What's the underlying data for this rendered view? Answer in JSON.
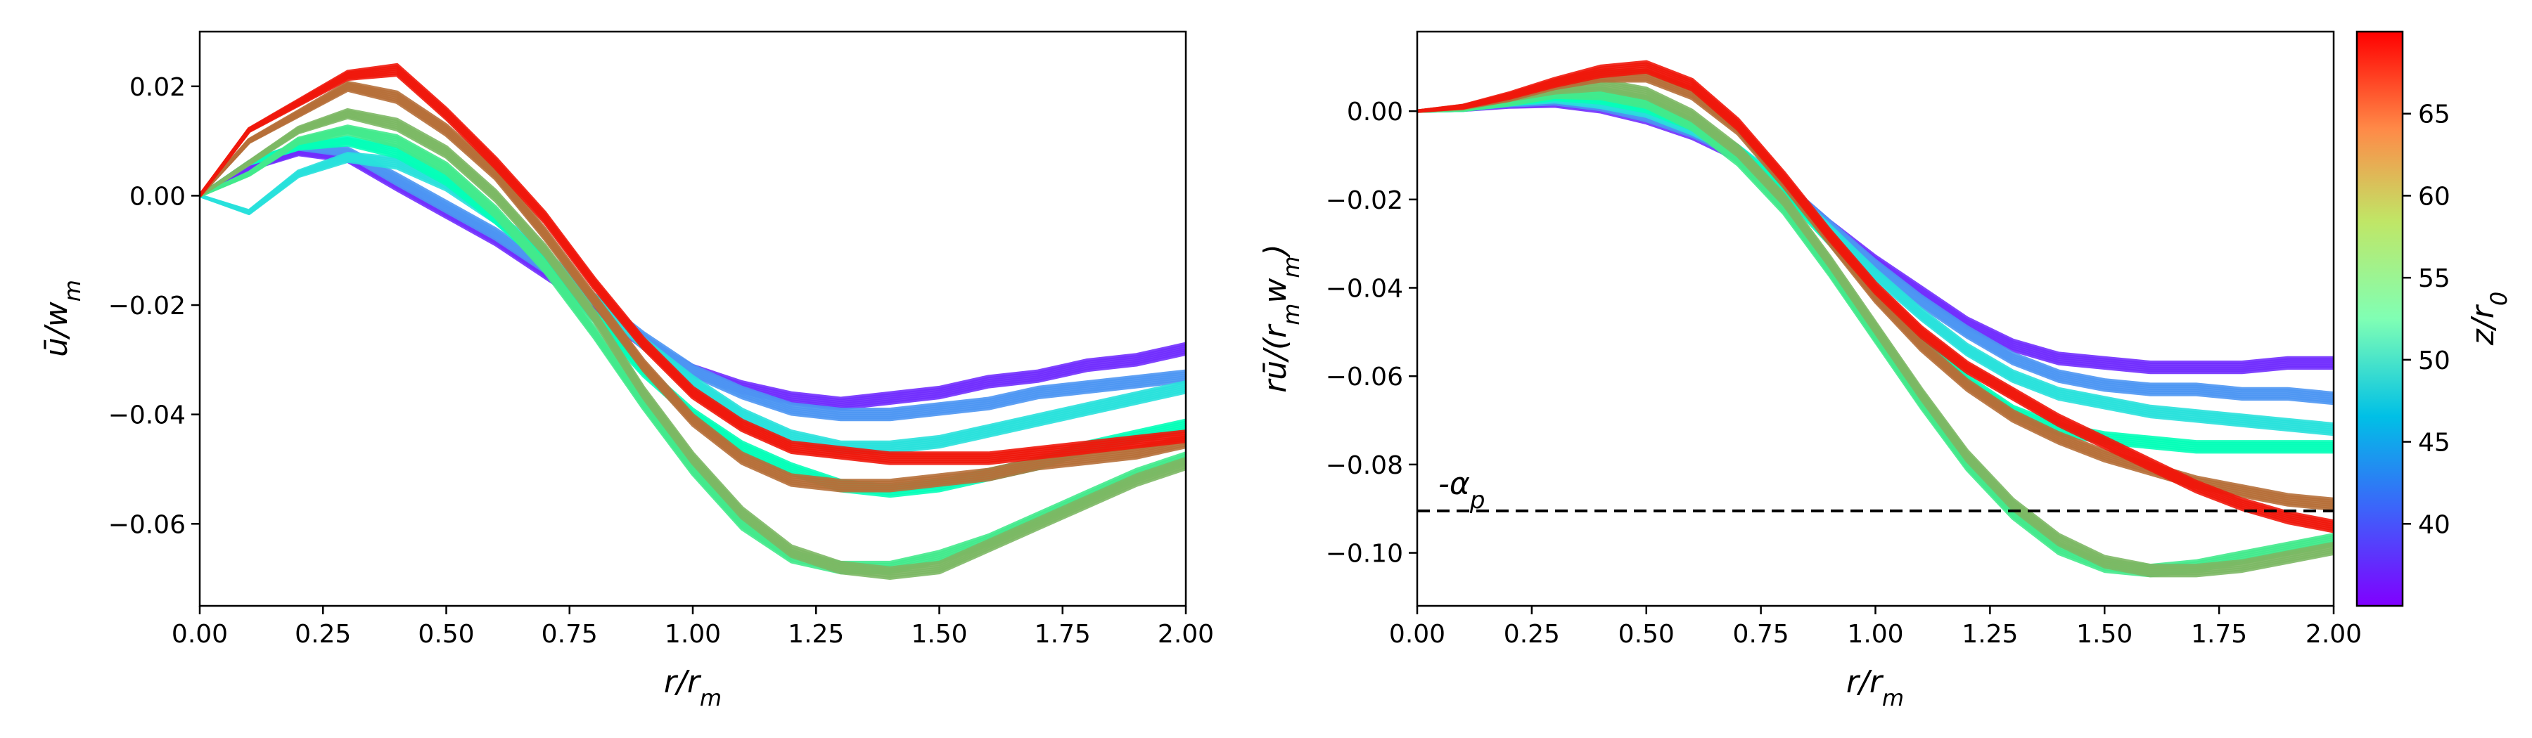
{
  "chart_data": [
    {
      "type": "line",
      "xlabel": "r/r_m",
      "ylabel": "ū/w_m",
      "xlim": [
        0.0,
        2.0
      ],
      "ylim": [
        -0.075,
        0.03
      ],
      "xticks": [
        "0.00",
        "0.25",
        "0.50",
        "0.75",
        "1.00",
        "1.25",
        "1.50",
        "1.75",
        "2.00"
      ],
      "yticks": [
        "0.02",
        "0.00",
        "−0.02",
        "−0.04",
        "−0.06"
      ],
      "grid": false,
      "color_encoding": "z/r0 (rainbow colormap)",
      "series": [
        {
          "z": 37,
          "x": [
            0,
            0.1,
            0.2,
            0.3,
            0.4,
            0.5,
            0.6,
            0.7,
            0.8,
            0.9,
            1.0,
            1.1,
            1.2,
            1.3,
            1.4,
            1.5,
            1.6,
            1.7,
            1.8,
            1.9,
            2.0
          ],
          "y": [
            0,
            0.005,
            0.008,
            0.007,
            0.002,
            -0.003,
            -0.008,
            -0.014,
            -0.02,
            -0.027,
            -0.032,
            -0.035,
            -0.037,
            -0.038,
            -0.037,
            -0.036,
            -0.034,
            -0.033,
            -0.031,
            -0.03,
            -0.028
          ]
        },
        {
          "z": 42,
          "x": [
            0,
            0.1,
            0.2,
            0.3,
            0.4,
            0.5,
            0.6,
            0.7,
            0.8,
            0.9,
            1.0,
            1.1,
            1.2,
            1.3,
            1.4,
            1.5,
            1.6,
            1.7,
            1.8,
            1.9,
            2.0
          ],
          "y": [
            0,
            0.006,
            0.009,
            0.008,
            0.003,
            -0.002,
            -0.007,
            -0.013,
            -0.019,
            -0.026,
            -0.032,
            -0.036,
            -0.039,
            -0.04,
            -0.04,
            -0.039,
            -0.038,
            -0.036,
            -0.035,
            -0.034,
            -0.033
          ]
        },
        {
          "z": 47,
          "x": [
            0,
            0.1,
            0.2,
            0.3,
            0.4,
            0.5,
            0.6,
            0.7,
            0.8,
            0.9,
            1.0,
            1.1,
            1.2,
            1.3,
            1.4,
            1.5,
            1.6,
            1.7,
            1.8,
            1.9,
            2.0
          ],
          "y": [
            0,
            -0.003,
            0.004,
            0.007,
            0.006,
            0.002,
            -0.004,
            -0.011,
            -0.019,
            -0.027,
            -0.034,
            -0.04,
            -0.044,
            -0.046,
            -0.046,
            -0.045,
            -0.043,
            -0.041,
            -0.039,
            -0.037,
            -0.035
          ]
        },
        {
          "z": 52,
          "x": [
            0,
            0.1,
            0.2,
            0.3,
            0.4,
            0.5,
            0.6,
            0.7,
            0.8,
            0.9,
            1.0,
            1.1,
            1.2,
            1.3,
            1.4,
            1.5,
            1.6,
            1.7,
            1.8,
            1.9,
            2.0
          ],
          "y": [
            0,
            0.006,
            0.009,
            0.01,
            0.008,
            0.003,
            -0.004,
            -0.012,
            -0.022,
            -0.032,
            -0.04,
            -0.046,
            -0.05,
            -0.053,
            -0.054,
            -0.053,
            -0.051,
            -0.049,
            -0.046,
            -0.044,
            -0.042
          ]
        },
        {
          "z": 57,
          "x": [
            0,
            0.1,
            0.2,
            0.3,
            0.4,
            0.5,
            0.6,
            0.7,
            0.8,
            0.9,
            1.0,
            1.1,
            1.2,
            1.3,
            1.4,
            1.5,
            1.6,
            1.7,
            1.8,
            1.9,
            2.0
          ],
          "y": [
            0,
            0.004,
            0.01,
            0.012,
            0.01,
            0.005,
            -0.003,
            -0.013,
            -0.025,
            -0.038,
            -0.05,
            -0.06,
            -0.066,
            -0.068,
            -0.068,
            -0.066,
            -0.063,
            -0.059,
            -0.055,
            -0.051,
            -0.048
          ]
        },
        {
          "z": 61,
          "x": [
            0,
            0.1,
            0.2,
            0.3,
            0.4,
            0.5,
            0.6,
            0.7,
            0.8,
            0.9,
            1.0,
            1.1,
            1.2,
            1.3,
            1.4,
            1.5,
            1.6,
            1.7,
            1.8,
            1.9,
            2.0
          ],
          "y": [
            0,
            0.006,
            0.012,
            0.015,
            0.013,
            0.008,
            0.0,
            -0.01,
            -0.022,
            -0.036,
            -0.048,
            -0.058,
            -0.065,
            -0.068,
            -0.069,
            -0.068,
            -0.064,
            -0.06,
            -0.056,
            -0.052,
            -0.049
          ]
        },
        {
          "z": 65,
          "x": [
            0,
            0.1,
            0.2,
            0.3,
            0.4,
            0.5,
            0.6,
            0.7,
            0.8,
            0.9,
            1.0,
            1.1,
            1.2,
            1.3,
            1.4,
            1.5,
            1.6,
            1.7,
            1.8,
            1.9,
            2.0
          ],
          "y": [
            0,
            0.01,
            0.015,
            0.02,
            0.018,
            0.012,
            0.004,
            -0.007,
            -0.019,
            -0.031,
            -0.041,
            -0.048,
            -0.052,
            -0.053,
            -0.053,
            -0.052,
            -0.051,
            -0.049,
            -0.048,
            -0.047,
            -0.045
          ]
        },
        {
          "z": 69,
          "x": [
            0,
            0.1,
            0.2,
            0.3,
            0.4,
            0.5,
            0.6,
            0.7,
            0.8,
            0.9,
            1.0,
            1.1,
            1.2,
            1.3,
            1.4,
            1.5,
            1.6,
            1.7,
            1.8,
            1.9,
            2.0
          ],
          "y": [
            0,
            0.012,
            0.017,
            0.022,
            0.023,
            0.015,
            0.006,
            -0.004,
            -0.016,
            -0.027,
            -0.036,
            -0.042,
            -0.046,
            -0.047,
            -0.048,
            -0.048,
            -0.048,
            -0.047,
            -0.046,
            -0.045,
            -0.044
          ]
        }
      ]
    },
    {
      "type": "line",
      "xlabel": "r/r_m",
      "ylabel": "rū/(r_m w_m)",
      "xlim": [
        0.0,
        2.0
      ],
      "ylim": [
        -0.112,
        0.018
      ],
      "xticks": [
        "0.00",
        "0.25",
        "0.50",
        "0.75",
        "1.00",
        "1.25",
        "1.50",
        "1.75",
        "2.00"
      ],
      "yticks": [
        "0.00",
        "−0.02",
        "−0.04",
        "−0.06",
        "−0.08",
        "−0.10"
      ],
      "grid": false,
      "reference_line": {
        "label": "-α_p",
        "y": -0.0905,
        "style": "dashed"
      },
      "series": [
        {
          "z": 37,
          "x": [
            0,
            0.1,
            0.2,
            0.3,
            0.4,
            0.5,
            0.6,
            0.7,
            0.8,
            0.9,
            1.0,
            1.1,
            1.2,
            1.3,
            1.4,
            1.5,
            1.6,
            1.7,
            1.8,
            1.9,
            2.0
          ],
          "y": [
            0,
            0.0005,
            0.0015,
            0.002,
            0.001,
            -0.0015,
            -0.005,
            -0.01,
            -0.017,
            -0.026,
            -0.034,
            -0.041,
            -0.048,
            -0.053,
            -0.056,
            -0.057,
            -0.058,
            -0.058,
            -0.058,
            -0.057,
            -0.057
          ]
        },
        {
          "z": 42,
          "x": [
            0,
            0.1,
            0.2,
            0.3,
            0.4,
            0.5,
            0.6,
            0.7,
            0.8,
            0.9,
            1.0,
            1.1,
            1.2,
            1.3,
            1.4,
            1.5,
            1.6,
            1.7,
            1.8,
            1.9,
            2.0
          ],
          "y": [
            0,
            0.0006,
            0.0018,
            0.0025,
            0.0015,
            -0.001,
            -0.0045,
            -0.0095,
            -0.017,
            -0.026,
            -0.035,
            -0.043,
            -0.05,
            -0.056,
            -0.06,
            -0.062,
            -0.063,
            -0.063,
            -0.064,
            -0.064,
            -0.065
          ]
        },
        {
          "z": 47,
          "x": [
            0,
            0.1,
            0.2,
            0.3,
            0.4,
            0.5,
            0.6,
            0.7,
            0.8,
            0.9,
            1.0,
            1.1,
            1.2,
            1.3,
            1.4,
            1.5,
            1.6,
            1.7,
            1.8,
            1.9,
            2.0
          ],
          "y": [
            0,
            0.0005,
            0.002,
            0.003,
            0.002,
            0.0,
            -0.004,
            -0.009,
            -0.017,
            -0.027,
            -0.037,
            -0.046,
            -0.054,
            -0.06,
            -0.064,
            -0.066,
            -0.068,
            -0.069,
            -0.07,
            -0.071,
            -0.072
          ]
        },
        {
          "z": 52,
          "x": [
            0,
            0.1,
            0.2,
            0.3,
            0.4,
            0.5,
            0.6,
            0.7,
            0.8,
            0.9,
            1.0,
            1.1,
            1.2,
            1.3,
            1.4,
            1.5,
            1.6,
            1.7,
            1.8,
            1.9,
            2.0
          ],
          "y": [
            0,
            0.0005,
            0.002,
            0.0035,
            0.003,
            0.001,
            -0.003,
            -0.009,
            -0.018,
            -0.029,
            -0.041,
            -0.052,
            -0.061,
            -0.068,
            -0.072,
            -0.074,
            -0.075,
            -0.076,
            -0.076,
            -0.076,
            -0.076
          ]
        },
        {
          "z": 57,
          "x": [
            0,
            0.1,
            0.2,
            0.3,
            0.4,
            0.5,
            0.6,
            0.7,
            0.8,
            0.9,
            1.0,
            1.1,
            1.2,
            1.3,
            1.4,
            1.5,
            1.6,
            1.7,
            1.8,
            1.9,
            2.0
          ],
          "y": [
            0,
            0.0005,
            0.002,
            0.004,
            0.004,
            0.002,
            -0.003,
            -0.011,
            -0.022,
            -0.036,
            -0.051,
            -0.066,
            -0.08,
            -0.091,
            -0.099,
            -0.103,
            -0.104,
            -0.103,
            -0.101,
            -0.099,
            -0.097
          ]
        },
        {
          "z": 61,
          "x": [
            0,
            0.1,
            0.2,
            0.3,
            0.4,
            0.5,
            0.6,
            0.7,
            0.8,
            0.9,
            1.0,
            1.1,
            1.2,
            1.3,
            1.4,
            1.5,
            1.6,
            1.7,
            1.8,
            1.9,
            2.0
          ],
          "y": [
            0,
            0.0008,
            0.003,
            0.005,
            0.006,
            0.004,
            -0.001,
            -0.009,
            -0.02,
            -0.034,
            -0.049,
            -0.064,
            -0.078,
            -0.089,
            -0.097,
            -0.102,
            -0.104,
            -0.104,
            -0.103,
            -0.101,
            -0.099
          ]
        },
        {
          "z": 65,
          "x": [
            0,
            0.1,
            0.2,
            0.3,
            0.4,
            0.5,
            0.6,
            0.7,
            0.8,
            0.9,
            1.0,
            1.1,
            1.2,
            1.3,
            1.4,
            1.5,
            1.6,
            1.7,
            1.8,
            1.9,
            2.0
          ],
          "y": [
            0,
            0.001,
            0.003,
            0.006,
            0.008,
            0.008,
            0.004,
            -0.004,
            -0.016,
            -0.029,
            -0.042,
            -0.053,
            -0.062,
            -0.069,
            -0.074,
            -0.078,
            -0.081,
            -0.084,
            -0.086,
            -0.088,
            -0.089
          ]
        },
        {
          "z": 69,
          "x": [
            0,
            0.1,
            0.2,
            0.3,
            0.4,
            0.5,
            0.6,
            0.7,
            0.8,
            0.9,
            1.0,
            1.1,
            1.2,
            1.3,
            1.4,
            1.5,
            1.6,
            1.7,
            1.8,
            1.9,
            2.0
          ],
          "y": [
            0,
            0.001,
            0.0035,
            0.0065,
            0.009,
            0.01,
            0.006,
            -0.003,
            -0.015,
            -0.028,
            -0.04,
            -0.05,
            -0.058,
            -0.064,
            -0.07,
            -0.075,
            -0.08,
            -0.085,
            -0.089,
            -0.092,
            -0.094
          ]
        }
      ]
    }
  ],
  "colorbar": {
    "label": "z/r0",
    "range": [
      35,
      70
    ],
    "ticks": [
      "40",
      "45",
      "50",
      "55",
      "60",
      "65"
    ],
    "colormap": "rainbow"
  }
}
